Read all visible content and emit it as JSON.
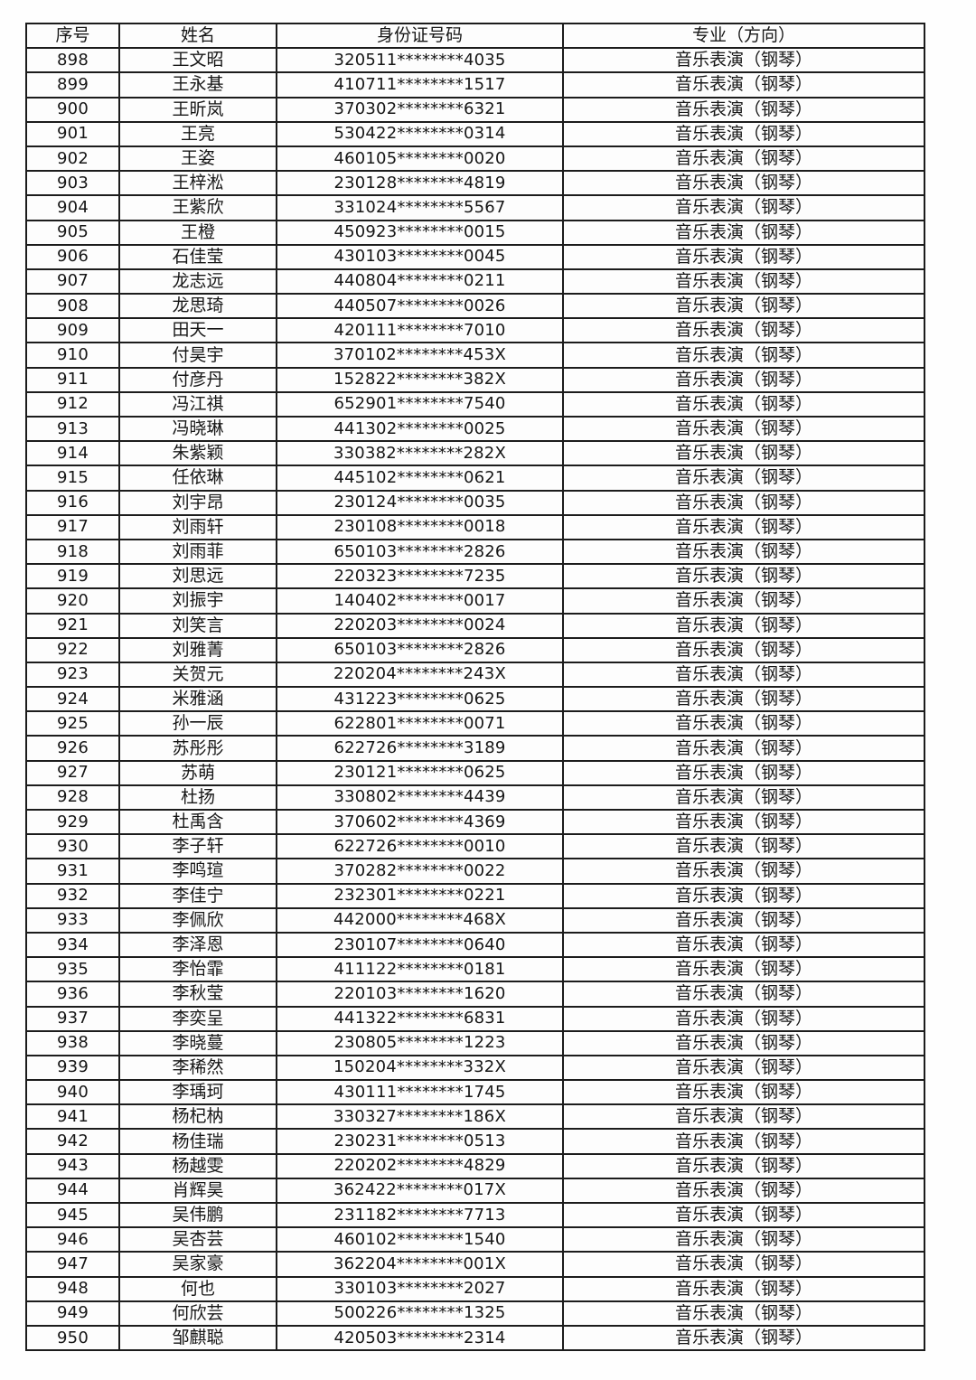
{
  "document": {
    "table": {
      "columns": [
        "序号",
        "姓名",
        "身份证号码",
        "专业（方向）"
      ],
      "rows": [
        [
          "898",
          "王文昭",
          "320511********4035",
          "音乐表演（钢琴）"
        ],
        [
          "899",
          "王永基",
          "410711********1517",
          "音乐表演（钢琴）"
        ],
        [
          "900",
          "王昕岚",
          "370302********6321",
          "音乐表演（钢琴）"
        ],
        [
          "901",
          "王亮",
          "530422********0314",
          "音乐表演（钢琴）"
        ],
        [
          "902",
          "王姿",
          "460105********0020",
          "音乐表演（钢琴）"
        ],
        [
          "903",
          "王梓淞",
          "230128********4819",
          "音乐表演（钢琴）"
        ],
        [
          "904",
          "王紫欣",
          "331024********5567",
          "音乐表演（钢琴）"
        ],
        [
          "905",
          "王橙",
          "450923********0015",
          "音乐表演（钢琴）"
        ],
        [
          "906",
          "石佳莹",
          "430103********0045",
          "音乐表演（钢琴）"
        ],
        [
          "907",
          "龙志远",
          "440804********0211",
          "音乐表演（钢琴）"
        ],
        [
          "908",
          "龙思琦",
          "440507********0026",
          "音乐表演（钢琴）"
        ],
        [
          "909",
          "田天一",
          "420111********7010",
          "音乐表演（钢琴）"
        ],
        [
          "910",
          "付昊宇",
          "370102********453X",
          "音乐表演（钢琴）"
        ],
        [
          "911",
          "付彦丹",
          "152822********382X",
          "音乐表演（钢琴）"
        ],
        [
          "912",
          "冯江祺",
          "652901********7540",
          "音乐表演（钢琴）"
        ],
        [
          "913",
          "冯晓琳",
          "441302********0025",
          "音乐表演（钢琴）"
        ],
        [
          "914",
          "朱紫颖",
          "330382********282X",
          "音乐表演（钢琴）"
        ],
        [
          "915",
          "任依琳",
          "445102********0621",
          "音乐表演（钢琴）"
        ],
        [
          "916",
          "刘宇昂",
          "230124********0035",
          "音乐表演（钢琴）"
        ],
        [
          "917",
          "刘雨轩",
          "230108********0018",
          "音乐表演（钢琴）"
        ],
        [
          "918",
          "刘雨菲",
          "650103********2826",
          "音乐表演（钢琴）"
        ],
        [
          "919",
          "刘思远",
          "220323********7235",
          "音乐表演（钢琴）"
        ],
        [
          "920",
          "刘振宇",
          "140402********0017",
          "音乐表演（钢琴）"
        ],
        [
          "921",
          "刘笑言",
          "220203********0024",
          "音乐表演（钢琴）"
        ],
        [
          "922",
          "刘雅菁",
          "650103********2826",
          "音乐表演（钢琴）"
        ],
        [
          "923",
          "关贺元",
          "220204********243X",
          "音乐表演（钢琴）"
        ],
        [
          "924",
          "米雅涵",
          "431223********0625",
          "音乐表演（钢琴）"
        ],
        [
          "925",
          "孙一辰",
          "622801********0071",
          "音乐表演（钢琴）"
        ],
        [
          "926",
          "苏彤彤",
          "622726********3189",
          "音乐表演（钢琴）"
        ],
        [
          "927",
          "苏萌",
          "230121********0625",
          "音乐表演（钢琴）"
        ],
        [
          "928",
          "杜扬",
          "330802********4439",
          "音乐表演（钢琴）"
        ],
        [
          "929",
          "杜禹含",
          "370602********4369",
          "音乐表演（钢琴）"
        ],
        [
          "930",
          "李子轩",
          "622726********0010",
          "音乐表演（钢琴）"
        ],
        [
          "931",
          "李鸣瑄",
          "370282********0022",
          "音乐表演（钢琴）"
        ],
        [
          "932",
          "李佳宁",
          "232301********0221",
          "音乐表演（钢琴）"
        ],
        [
          "933",
          "李佩欣",
          "442000********468X",
          "音乐表演（钢琴）"
        ],
        [
          "934",
          "李泽恩",
          "230107********0640",
          "音乐表演（钢琴）"
        ],
        [
          "935",
          "李怡霏",
          "411122********0181",
          "音乐表演（钢琴）"
        ],
        [
          "936",
          "李秋莹",
          "220103********1620",
          "音乐表演（钢琴）"
        ],
        [
          "937",
          "李奕呈",
          "441322********6831",
          "音乐表演（钢琴）"
        ],
        [
          "938",
          "李晓蔓",
          "230805********1223",
          "音乐表演（钢琴）"
        ],
        [
          "939",
          "李稀然",
          "150204********332X",
          "音乐表演（钢琴）"
        ],
        [
          "940",
          "李瑀珂",
          "430111********1745",
          "音乐表演（钢琴）"
        ],
        [
          "941",
          "杨杞枘",
          "330327********186X",
          "音乐表演（钢琴）"
        ],
        [
          "942",
          "杨佳瑞",
          "230231********0513",
          "音乐表演（钢琴）"
        ],
        [
          "943",
          "杨越雯",
          "220202********4829",
          "音乐表演（钢琴）"
        ],
        [
          "944",
          "肖辉昊",
          "362422********017X",
          "音乐表演（钢琴）"
        ],
        [
          "945",
          "吴伟鹏",
          "231182********7713",
          "音乐表演（钢琴）"
        ],
        [
          "946",
          "吴杏芸",
          "460102********1540",
          "音乐表演（钢琴）"
        ],
        [
          "947",
          "吴家豪",
          "362204********001X",
          "音乐表演（钢琴）"
        ],
        [
          "948",
          "何也",
          "330103********2027",
          "音乐表演（钢琴）"
        ],
        [
          "949",
          "何欣芸",
          "500226********1325",
          "音乐表演（钢琴）"
        ],
        [
          "950",
          "邹麒聪",
          "420503********2314",
          "音乐表演（钢琴）"
        ]
      ]
    }
  }
}
